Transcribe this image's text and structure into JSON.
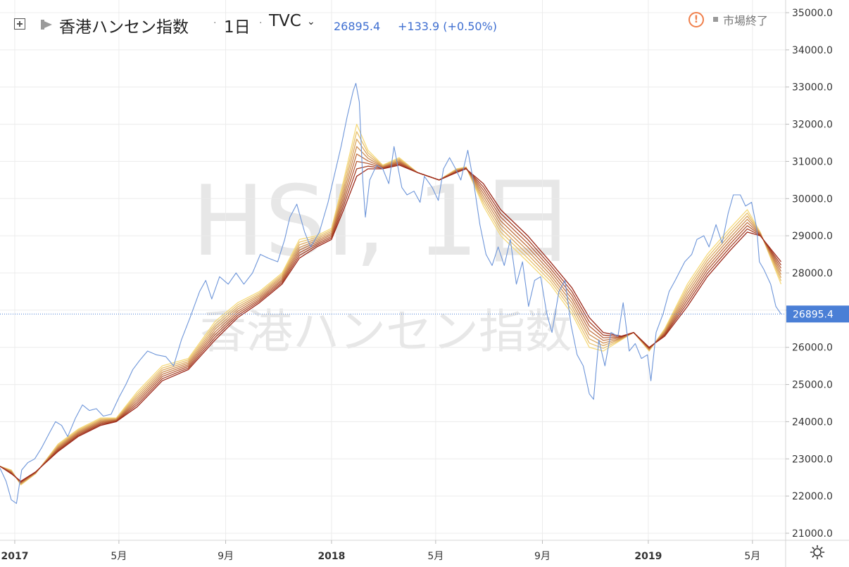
{
  "header": {
    "symbol_name": "香港ハンセン指数",
    "interval": "1日",
    "exchange": "TVC",
    "last_price": "26895.4",
    "change": "+133.9 (+0.50%)",
    "market_status": "市場終了",
    "warning_icon": "alert-circle-icon",
    "compare_icon": "plus-box-icon",
    "flag_icon": "flag-icon",
    "settings_icon": "sun-gear-icon"
  },
  "watermark": {
    "line1": "HSI, 1日",
    "line2": "香港ハンセン指数"
  },
  "colors": {
    "price_line": "#6d95d9",
    "last_price_tag": "#4a7fd6",
    "ribbon_short": "#f5d97a",
    "ribbon_long": "#9b2718",
    "grid": "#ececec",
    "watermark": "#e6e6e6"
  },
  "chart_data": {
    "type": "line",
    "title": "",
    "xlabel": "",
    "ylabel": "",
    "ylim": [
      20800,
      35300
    ],
    "xlim": [
      "2016-12-15",
      "2019-06-05"
    ],
    "y_ticks": [
      "35000.0",
      "34000.0",
      "33000.0",
      "32000.0",
      "31000.0",
      "30000.0",
      "29000.0",
      "28000.0",
      "27000.0",
      "26000.0",
      "25000.0",
      "24000.0",
      "23000.0",
      "22000.0",
      "21000.0"
    ],
    "x_ticks": [
      {
        "date": "2017-01-01",
        "label": "2017"
      },
      {
        "date": "2017-05-01",
        "label": "5月"
      },
      {
        "date": "2017-09-01",
        "label": "9月"
      },
      {
        "date": "2018-01-01",
        "label": "2018"
      },
      {
        "date": "2018-05-01",
        "label": "5月"
      },
      {
        "date": "2018-09-01",
        "label": "9月"
      },
      {
        "date": "2019-01-01",
        "label": "2019"
      },
      {
        "date": "2019-05-01",
        "label": "5月"
      }
    ],
    "last_value": 26895.4,
    "series": [
      {
        "type": "price",
        "points": [
          [
            "2016-12-15",
            22750
          ],
          [
            "2016-12-22",
            22400
          ],
          [
            "2016-12-28",
            21900
          ],
          [
            "2017-01-03",
            21800
          ],
          [
            "2017-01-09",
            22700
          ],
          [
            "2017-01-16",
            22900
          ],
          [
            "2017-01-24",
            23000
          ],
          [
            "2017-02-01",
            23300
          ],
          [
            "2017-02-10",
            23700
          ],
          [
            "2017-02-17",
            24000
          ],
          [
            "2017-02-24",
            23900
          ],
          [
            "2017-03-03",
            23600
          ],
          [
            "2017-03-12",
            24100
          ],
          [
            "2017-03-20",
            24450
          ],
          [
            "2017-03-28",
            24300
          ],
          [
            "2017-04-05",
            24350
          ],
          [
            "2017-04-13",
            24150
          ],
          [
            "2017-04-22",
            24200
          ],
          [
            "2017-05-01",
            24650
          ],
          [
            "2017-05-09",
            25000
          ],
          [
            "2017-05-17",
            25400
          ],
          [
            "2017-05-25",
            25650
          ],
          [
            "2017-06-03",
            25900
          ],
          [
            "2017-06-13",
            25800
          ],
          [
            "2017-06-24",
            25750
          ],
          [
            "2017-07-03",
            25500
          ],
          [
            "2017-07-12",
            26200
          ],
          [
            "2017-07-22",
            26800
          ],
          [
            "2017-08-02",
            27500
          ],
          [
            "2017-08-09",
            27800
          ],
          [
            "2017-08-16",
            27300
          ],
          [
            "2017-08-25",
            27900
          ],
          [
            "2017-09-04",
            27700
          ],
          [
            "2017-09-13",
            28000
          ],
          [
            "2017-09-22",
            27700
          ],
          [
            "2017-10-02",
            28000
          ],
          [
            "2017-10-11",
            28500
          ],
          [
            "2017-10-20",
            28400
          ],
          [
            "2017-10-31",
            28300
          ],
          [
            "2017-11-08",
            28900
          ],
          [
            "2017-11-14",
            29500
          ],
          [
            "2017-11-22",
            29850
          ],
          [
            "2017-12-01",
            29100
          ],
          [
            "2017-12-08",
            28700
          ],
          [
            "2017-12-18",
            29100
          ],
          [
            "2017-12-28",
            29900
          ],
          [
            "2018-01-04",
            30600
          ],
          [
            "2018-01-12",
            31400
          ],
          [
            "2018-01-19",
            32200
          ],
          [
            "2018-01-26",
            32900
          ],
          [
            "2018-01-29",
            33100
          ],
          [
            "2018-02-02",
            32600
          ],
          [
            "2018-02-06",
            30500
          ],
          [
            "2018-02-09",
            29500
          ],
          [
            "2018-02-14",
            30500
          ],
          [
            "2018-02-22",
            30900
          ],
          [
            "2018-03-01",
            30800
          ],
          [
            "2018-03-08",
            30400
          ],
          [
            "2018-03-14",
            31400
          ],
          [
            "2018-03-23",
            30300
          ],
          [
            "2018-03-29",
            30100
          ],
          [
            "2018-04-06",
            30200
          ],
          [
            "2018-04-13",
            29900
          ],
          [
            "2018-04-18",
            30600
          ],
          [
            "2018-04-27",
            30300
          ],
          [
            "2018-05-04",
            29950
          ],
          [
            "2018-05-10",
            30800
          ],
          [
            "2018-05-17",
            31100
          ],
          [
            "2018-05-24",
            30800
          ],
          [
            "2018-05-30",
            30500
          ],
          [
            "2018-06-07",
            31300
          ],
          [
            "2018-06-14",
            30400
          ],
          [
            "2018-06-21",
            29300
          ],
          [
            "2018-06-28",
            28500
          ],
          [
            "2018-07-05",
            28200
          ],
          [
            "2018-07-12",
            28700
          ],
          [
            "2018-07-19",
            28200
          ],
          [
            "2018-07-26",
            28900
          ],
          [
            "2018-08-02",
            27700
          ],
          [
            "2018-08-09",
            28300
          ],
          [
            "2018-08-16",
            27100
          ],
          [
            "2018-08-23",
            27800
          ],
          [
            "2018-08-30",
            27900
          ],
          [
            "2018-09-06",
            26900
          ],
          [
            "2018-09-12",
            26400
          ],
          [
            "2018-09-20",
            27500
          ],
          [
            "2018-09-27",
            27800
          ],
          [
            "2018-10-04",
            26600
          ],
          [
            "2018-10-11",
            25800
          ],
          [
            "2018-10-18",
            25500
          ],
          [
            "2018-10-25",
            24750
          ],
          [
            "2018-10-30",
            24600
          ],
          [
            "2018-11-05",
            26200
          ],
          [
            "2018-11-12",
            25500
          ],
          [
            "2018-11-19",
            26400
          ],
          [
            "2018-11-27",
            26300
          ],
          [
            "2018-12-03",
            27200
          ],
          [
            "2018-12-10",
            25900
          ],
          [
            "2018-12-17",
            26100
          ],
          [
            "2018-12-24",
            25700
          ],
          [
            "2018-12-31",
            25800
          ],
          [
            "2019-01-04",
            25100
          ],
          [
            "2019-01-10",
            26400
          ],
          [
            "2019-01-18",
            26900
          ],
          [
            "2019-01-25",
            27500
          ],
          [
            "2019-02-01",
            27800
          ],
          [
            "2019-02-12",
            28300
          ],
          [
            "2019-02-20",
            28500
          ],
          [
            "2019-02-26",
            28900
          ],
          [
            "2019-03-06",
            29000
          ],
          [
            "2019-03-12",
            28700
          ],
          [
            "2019-03-20",
            29300
          ],
          [
            "2019-03-27",
            28800
          ],
          [
            "2019-04-03",
            29600
          ],
          [
            "2019-04-09",
            30100
          ],
          [
            "2019-04-17",
            30100
          ],
          [
            "2019-04-23",
            29800
          ],
          [
            "2019-04-30",
            29900
          ],
          [
            "2019-05-06",
            29200
          ],
          [
            "2019-05-09",
            28300
          ],
          [
            "2019-05-14",
            28100
          ],
          [
            "2019-05-22",
            27700
          ],
          [
            "2019-05-28",
            27100
          ],
          [
            "2019-06-03",
            26895.4
          ]
        ]
      },
      {
        "type": "ribbon",
        "lines": 8,
        "envelope": [
          [
            "2016-12-15",
            22800,
            22800
          ],
          [
            "2016-12-28",
            22700,
            22600
          ],
          [
            "2017-01-08",
            22300,
            22400
          ],
          [
            "2017-01-25",
            22600,
            22650
          ],
          [
            "2017-02-20",
            23400,
            23200
          ],
          [
            "2017-03-15",
            23800,
            23600
          ],
          [
            "2017-04-10",
            24100,
            23900
          ],
          [
            "2017-04-28",
            24100,
            24000
          ],
          [
            "2017-05-22",
            24800,
            24400
          ],
          [
            "2017-06-20",
            25500,
            25100
          ],
          [
            "2017-07-20",
            25700,
            25400
          ],
          [
            "2017-08-20",
            26700,
            26200
          ],
          [
            "2017-09-15",
            27200,
            26800
          ],
          [
            "2017-10-10",
            27500,
            27200
          ],
          [
            "2017-11-05",
            28000,
            27700
          ],
          [
            "2017-11-25",
            28900,
            28400
          ],
          [
            "2017-12-15",
            29000,
            28700
          ],
          [
            "2018-01-01",
            29200,
            28900
          ],
          [
            "2018-01-15",
            30500,
            29700
          ],
          [
            "2018-01-30",
            32000,
            30600
          ],
          [
            "2018-02-12",
            31300,
            30800
          ],
          [
            "2018-03-01",
            30900,
            30800
          ],
          [
            "2018-03-20",
            31100,
            30900
          ],
          [
            "2018-04-10",
            30700,
            30700
          ],
          [
            "2018-05-05",
            30500,
            30500
          ],
          [
            "2018-05-25",
            30800,
            30700
          ],
          [
            "2018-06-05",
            30850,
            30800
          ],
          [
            "2018-06-25",
            29800,
            30400
          ],
          [
            "2018-07-15",
            29000,
            29700
          ],
          [
            "2018-08-15",
            28300,
            29000
          ],
          [
            "2018-09-10",
            27700,
            28300
          ],
          [
            "2018-10-05",
            26900,
            27600
          ],
          [
            "2018-10-25",
            26000,
            26800
          ],
          [
            "2018-11-10",
            25900,
            26400
          ],
          [
            "2018-12-01",
            26200,
            26300
          ],
          [
            "2018-12-15",
            26400,
            26400
          ],
          [
            "2019-01-02",
            25900,
            26000
          ],
          [
            "2019-01-20",
            26500,
            26300
          ],
          [
            "2019-02-15",
            27700,
            27100
          ],
          [
            "2019-03-10",
            28500,
            27900
          ],
          [
            "2019-04-05",
            29200,
            28600
          ],
          [
            "2019-04-25",
            29700,
            29100
          ],
          [
            "2019-05-10",
            29100,
            29000
          ],
          [
            "2019-06-03",
            27700,
            28300
          ]
        ]
      }
    ]
  }
}
